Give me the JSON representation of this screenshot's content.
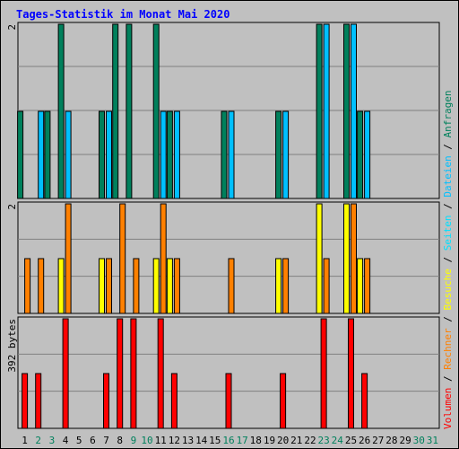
{
  "title": "Tages-Statistik im Monat Mai 2020",
  "colors": {
    "title": "#0000ff",
    "background": "#c0c0c0",
    "plot_bg": "#c0c0c0",
    "grid": "#808080",
    "anfragen": "#00805c",
    "dateien": "#00c0ff",
    "seiten": "#00e0ff",
    "besuche": "#ffff00",
    "rechner": "#ff8000",
    "volumen": "#ff0000",
    "day_normal": "#000000",
    "day_weekend": "#00805c"
  },
  "chart_data": [
    {
      "type": "bar",
      "panel": "top",
      "ytick_top": "2",
      "ylim": [
        0,
        2
      ],
      "categories": [
        "1",
        "2",
        "3",
        "4",
        "5",
        "6",
        "7",
        "8",
        "9",
        "10",
        "11",
        "12",
        "13",
        "14",
        "15",
        "16",
        "17",
        "18",
        "19",
        "20",
        "21",
        "22",
        "23",
        "24",
        "25",
        "26",
        "27",
        "28",
        "29",
        "30",
        "31"
      ],
      "series": [
        {
          "name": "Anfragen",
          "color_key": "anfragen",
          "values": [
            1,
            0,
            1,
            2,
            0,
            0,
            1,
            2,
            2,
            0,
            2,
            1,
            0,
            0,
            0,
            1,
            0,
            0,
            0,
            1,
            0,
            0,
            2,
            0,
            2,
            1,
            0,
            0,
            0,
            0,
            0
          ]
        },
        {
          "name": "Dateien",
          "color_key": "dateien",
          "values": [
            0,
            1,
            0,
            1,
            0,
            0,
            1,
            0,
            0,
            0,
            1,
            1,
            0,
            0,
            0,
            1,
            0,
            0,
            0,
            1,
            0,
            0,
            2,
            0,
            2,
            1,
            0,
            0,
            0,
            0,
            0
          ]
        }
      ]
    },
    {
      "type": "bar",
      "panel": "middle",
      "ytick_top": "2",
      "ylim": [
        0,
        2
      ],
      "categories": [
        "1",
        "2",
        "3",
        "4",
        "5",
        "6",
        "7",
        "8",
        "9",
        "10",
        "11",
        "12",
        "13",
        "14",
        "15",
        "16",
        "17",
        "18",
        "19",
        "20",
        "21",
        "22",
        "23",
        "24",
        "25",
        "26",
        "27",
        "28",
        "29",
        "30",
        "31"
      ],
      "series": [
        {
          "name": "Besuche",
          "color_key": "besuche",
          "values": [
            0,
            0,
            0,
            1,
            0,
            0,
            1,
            0,
            0,
            0,
            1,
            1,
            0,
            0,
            0,
            0,
            0,
            0,
            0,
            1,
            0,
            0,
            2,
            0,
            2,
            1,
            0,
            0,
            0,
            0,
            0
          ]
        },
        {
          "name": "Rechner",
          "color_key": "rechner",
          "values": [
            1,
            1,
            0,
            2,
            0,
            0,
            1,
            2,
            1,
            0,
            2,
            1,
            0,
            0,
            0,
            1,
            0,
            0,
            0,
            1,
            0,
            0,
            1,
            0,
            2,
            1,
            0,
            0,
            0,
            0,
            0
          ]
        }
      ]
    },
    {
      "type": "bar",
      "panel": "bottom",
      "ytick_top": "392 bytes",
      "ylim": [
        0,
        392
      ],
      "categories": [
        "1",
        "2",
        "3",
        "4",
        "5",
        "6",
        "7",
        "8",
        "9",
        "10",
        "11",
        "12",
        "13",
        "14",
        "15",
        "16",
        "17",
        "18",
        "19",
        "20",
        "21",
        "22",
        "23",
        "24",
        "25",
        "26",
        "27",
        "28",
        "29",
        "30",
        "31"
      ],
      "series": [
        {
          "name": "Volumen",
          "color_key": "volumen",
          "values": [
            196,
            196,
            0,
            392,
            0,
            0,
            196,
            392,
            392,
            0,
            392,
            196,
            0,
            0,
            0,
            196,
            0,
            0,
            0,
            196,
            0,
            0,
            392,
            0,
            392,
            196,
            0,
            0,
            0,
            0,
            0
          ]
        }
      ]
    }
  ],
  "days": [
    {
      "label": "1",
      "weekend": false
    },
    {
      "label": "2",
      "weekend": true
    },
    {
      "label": "3",
      "weekend": true
    },
    {
      "label": "4",
      "weekend": false
    },
    {
      "label": "5",
      "weekend": false
    },
    {
      "label": "6",
      "weekend": false
    },
    {
      "label": "7",
      "weekend": false
    },
    {
      "label": "8",
      "weekend": false
    },
    {
      "label": "9",
      "weekend": true
    },
    {
      "label": "10",
      "weekend": true
    },
    {
      "label": "11",
      "weekend": false
    },
    {
      "label": "12",
      "weekend": false
    },
    {
      "label": "13",
      "weekend": false
    },
    {
      "label": "14",
      "weekend": false
    },
    {
      "label": "15",
      "weekend": false
    },
    {
      "label": "16",
      "weekend": true
    },
    {
      "label": "17",
      "weekend": true
    },
    {
      "label": "18",
      "weekend": false
    },
    {
      "label": "19",
      "weekend": false
    },
    {
      "label": "20",
      "weekend": false
    },
    {
      "label": "21",
      "weekend": false
    },
    {
      "label": "22",
      "weekend": false
    },
    {
      "label": "23",
      "weekend": true
    },
    {
      "label": "24",
      "weekend": true
    },
    {
      "label": "25",
      "weekend": false
    },
    {
      "label": "26",
      "weekend": false
    },
    {
      "label": "27",
      "weekend": false
    },
    {
      "label": "28",
      "weekend": false
    },
    {
      "label": "29",
      "weekend": false
    },
    {
      "label": "30",
      "weekend": true
    },
    {
      "label": "31",
      "weekend": true
    }
  ],
  "legend": [
    {
      "label": "Volumen",
      "color_key": "volumen"
    },
    {
      "label": "Rechner",
      "color_key": "rechner"
    },
    {
      "label": "Besuche",
      "color_key": "besuche"
    },
    {
      "label": "Seiten",
      "color_key": "seiten"
    },
    {
      "label": "Dateien",
      "color_key": "dateien"
    },
    {
      "label": "Anfragen",
      "color_key": "anfragen"
    }
  ],
  "legend_separator": " / "
}
